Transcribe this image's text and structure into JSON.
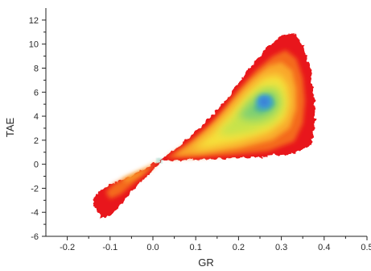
{
  "chart_data": {
    "type": "heatmap",
    "title": "",
    "xlabel": "GR",
    "ylabel": "TAE",
    "xlim": [
      -0.25,
      0.5
    ],
    "ylim": [
      -6,
      13
    ],
    "x_ticks": [
      -0.2,
      -0.1,
      0.0,
      0.1,
      0.2,
      0.3,
      0.4,
      0.5
    ],
    "x_tick_labels": [
      "-0.2",
      "-0.1",
      "0.0",
      "0.1",
      "0.2",
      "0.3",
      "0.4",
      "0.5"
    ],
    "y_ticks": [
      -6,
      -4,
      -2,
      0,
      2,
      4,
      6,
      8,
      10,
      12
    ],
    "y_tick_labels": [
      "-6",
      "-4",
      "-2",
      "0",
      "2",
      "4",
      "6",
      "8",
      "10",
      "12"
    ],
    "grid": false,
    "legend": "none",
    "colormap": [
      "#e8191b",
      "#f46a1f",
      "#f9a62a",
      "#f6e13a",
      "#c6e34c",
      "#7fd072",
      "#4bb39a",
      "#3f9cd4",
      "#3a7fd8"
    ],
    "density_regions": [
      {
        "level": "low",
        "shape": "upper lobe",
        "x_range": [
          0.02,
          0.38
        ],
        "y_range": [
          0.3,
          11
        ]
      },
      {
        "level": "low",
        "shape": "lower lobe",
        "x_range": [
          -0.13,
          0.02
        ],
        "y_range": [
          -4.5,
          0.3
        ]
      },
      {
        "level": "peak",
        "center": [
          0.26,
          5.2
        ]
      }
    ]
  }
}
